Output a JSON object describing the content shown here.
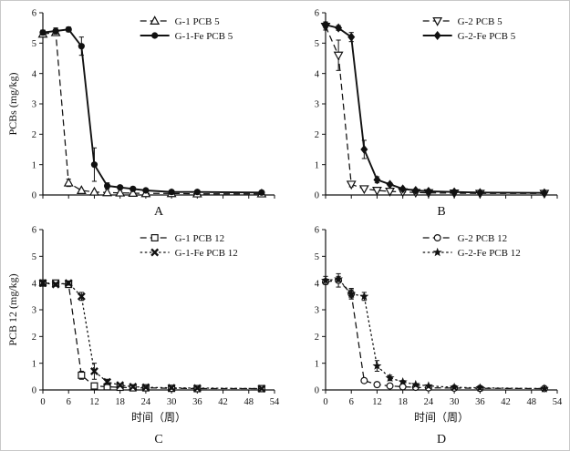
{
  "figure": {
    "background": "#ffffff",
    "line_color": "#111111",
    "text_color": "#111111"
  },
  "chart_data": [
    {
      "type": "line",
      "label": "A",
      "ylabel": "PCBs (mg/kg)",
      "xlabel": "",
      "xlim": [
        0,
        54
      ],
      "ylim": [
        0,
        6
      ],
      "xticks": [
        0,
        6,
        12,
        18,
        24,
        30,
        36,
        42,
        48,
        54
      ],
      "yticks": [
        0,
        1,
        2,
        3,
        4,
        5,
        6
      ],
      "show_x_tick_labels": false,
      "legend_position": "top-right",
      "x": [
        0,
        3,
        6,
        9,
        12,
        15,
        18,
        21,
        24,
        30,
        36,
        51
      ],
      "series": [
        {
          "name": "G-1 PCB 5",
          "marker": "triangle-up-open",
          "line": "dashed",
          "values": [
            5.3,
            5.35,
            0.4,
            0.15,
            0.1,
            0.08,
            0.07,
            0.06,
            0.05,
            0.05,
            0.04,
            0.04
          ],
          "errors": [
            0,
            0,
            0.12,
            0,
            0,
            0,
            0,
            0,
            0,
            0,
            0,
            0
          ]
        },
        {
          "name": "G-1-Fe PCB 5",
          "marker": "circle-filled",
          "line": "solid",
          "values": [
            5.35,
            5.4,
            5.45,
            4.9,
            1.0,
            0.3,
            0.25,
            0.2,
            0.15,
            0.1,
            0.1,
            0.08
          ],
          "errors": [
            0.08,
            0.1,
            0.08,
            0.3,
            0.55,
            0.1,
            0.05,
            0,
            0,
            0,
            0,
            0
          ]
        }
      ]
    },
    {
      "type": "line",
      "label": "B",
      "ylabel": "",
      "xlabel": "",
      "xlim": [
        0,
        54
      ],
      "ylim": [
        0,
        6
      ],
      "xticks": [
        0,
        6,
        12,
        18,
        24,
        30,
        36,
        42,
        48,
        54
      ],
      "yticks": [
        0,
        1,
        2,
        3,
        4,
        5,
        6
      ],
      "show_x_tick_labels": false,
      "legend_position": "top-right",
      "x": [
        0,
        3,
        6,
        9,
        12,
        15,
        18,
        21,
        24,
        30,
        36,
        51
      ],
      "series": [
        {
          "name": "G-2 PCB 5",
          "marker": "triangle-down-open",
          "line": "dashed",
          "values": [
            5.55,
            4.6,
            0.35,
            0.2,
            0.15,
            0.12,
            0.1,
            0.08,
            0.07,
            0.06,
            0.05,
            0.05
          ],
          "errors": [
            0.12,
            0.5,
            0.08,
            0,
            0,
            0,
            0,
            0,
            0,
            0,
            0,
            0
          ]
        },
        {
          "name": "G-2-Fe PCB 5",
          "marker": "diamond-filled",
          "line": "solid",
          "values": [
            5.6,
            5.5,
            5.2,
            1.5,
            0.5,
            0.35,
            0.2,
            0.15,
            0.12,
            0.1,
            0.08,
            0.07
          ],
          "errors": [
            0.1,
            0.08,
            0.15,
            0.3,
            0.1,
            0.05,
            0,
            0,
            0,
            0,
            0,
            0
          ]
        }
      ]
    },
    {
      "type": "line",
      "label": "C",
      "ylabel": "PCB 12 (mg/kg)",
      "xlabel": "时间（周）",
      "xlim": [
        0,
        54
      ],
      "ylim": [
        0,
        6
      ],
      "xticks": [
        0,
        6,
        12,
        18,
        24,
        30,
        36,
        42,
        48,
        54
      ],
      "yticks": [
        0,
        1,
        2,
        3,
        4,
        5,
        6
      ],
      "show_x_tick_labels": true,
      "legend_position": "top-right",
      "x": [
        0,
        3,
        6,
        9,
        12,
        15,
        18,
        21,
        24,
        30,
        36,
        51
      ],
      "series": [
        {
          "name": "G-1 PCB 12",
          "marker": "square-open",
          "line": "dashed",
          "values": [
            4.0,
            4.0,
            3.95,
            0.55,
            0.15,
            0.12,
            0.1,
            0.08,
            0.08,
            0.06,
            0.05,
            0.05
          ],
          "errors": [
            0.06,
            0.05,
            0.08,
            0.15,
            0,
            0,
            0,
            0,
            0,
            0,
            0,
            0
          ]
        },
        {
          "name": "G-1-Fe PCB 12",
          "marker": "x-bold",
          "line": "dotted",
          "values": [
            4.0,
            3.95,
            4.0,
            3.5,
            0.7,
            0.3,
            0.18,
            0.12,
            0.1,
            0.08,
            0.07,
            0.05
          ],
          "errors": [
            0.08,
            0.06,
            0.08,
            0.15,
            0.3,
            0.1,
            0.05,
            0,
            0,
            0,
            0,
            0
          ]
        }
      ]
    },
    {
      "type": "line",
      "label": "D",
      "ylabel": "",
      "xlabel": "时间（周）",
      "xlim": [
        0,
        54
      ],
      "ylim": [
        0,
        6
      ],
      "xticks": [
        0,
        6,
        12,
        18,
        24,
        30,
        36,
        42,
        48,
        54
      ],
      "yticks": [
        0,
        1,
        2,
        3,
        4,
        5,
        6
      ],
      "show_x_tick_labels": true,
      "legend_position": "top-right",
      "x": [
        0,
        3,
        6,
        9,
        12,
        15,
        18,
        21,
        24,
        30,
        36,
        51
      ],
      "series": [
        {
          "name": "G-2 PCB 12",
          "marker": "circle-open",
          "line": "dashed",
          "values": [
            4.05,
            4.1,
            3.6,
            0.35,
            0.2,
            0.15,
            0.12,
            0.1,
            0.08,
            0.07,
            0.06,
            0.05
          ],
          "errors": [
            0.1,
            0.25,
            0.15,
            0.05,
            0,
            0,
            0,
            0,
            0,
            0,
            0,
            0
          ]
        },
        {
          "name": "G-2-Fe PCB 12",
          "marker": "star-filled",
          "line": "dotted",
          "values": [
            4.1,
            4.15,
            3.6,
            3.5,
            0.9,
            0.45,
            0.3,
            0.2,
            0.15,
            0.1,
            0.08,
            0.05
          ],
          "errors": [
            0.15,
            0.1,
            0.2,
            0.15,
            0.2,
            0.1,
            0.05,
            0,
            0,
            0,
            0,
            0
          ]
        }
      ]
    }
  ]
}
